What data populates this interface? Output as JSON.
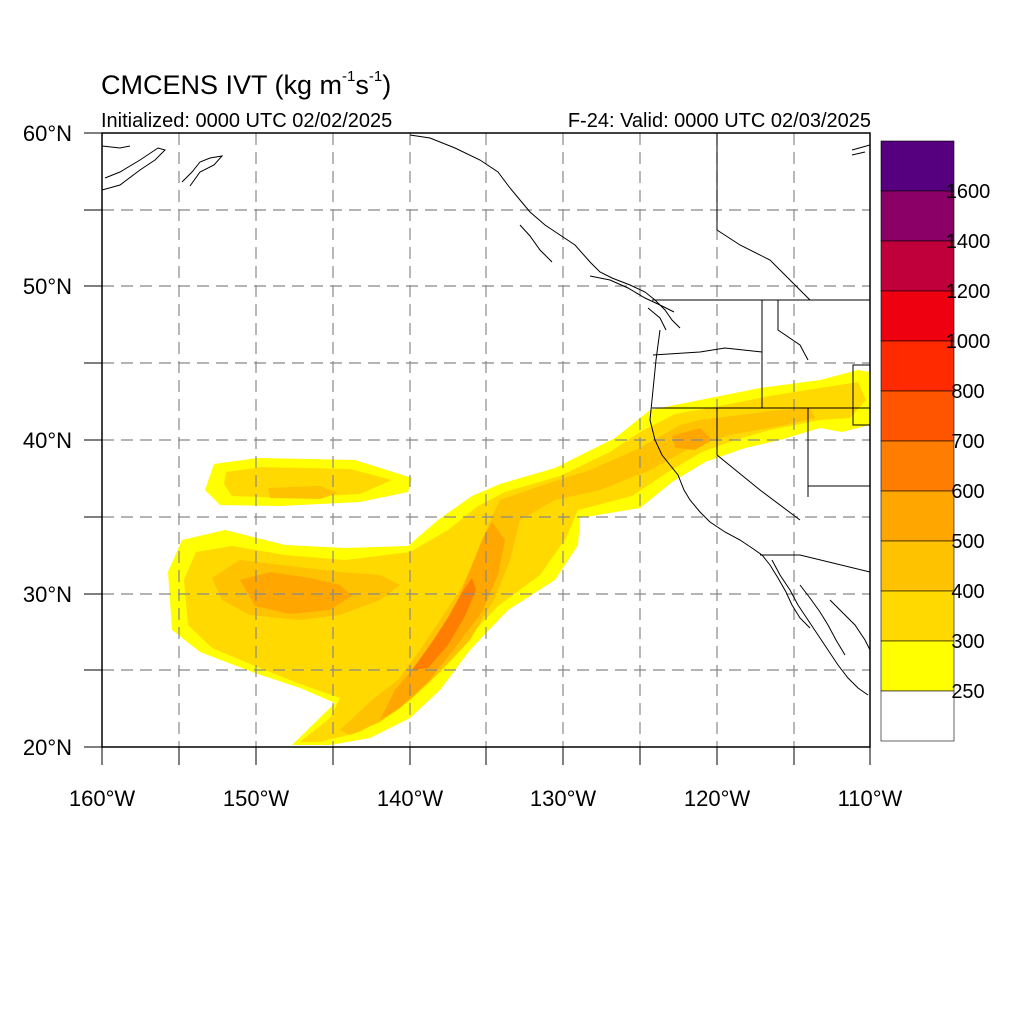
{
  "header": {
    "title_main": "CMCENS IVT (kg m",
    "title_exp1": "-1",
    "title_mid": "s",
    "title_exp2": "-1",
    "title_end": ")",
    "initialized": "Initialized: 0000 UTC 02/02/2025",
    "valid": "F-24: Valid: 0000 UTC 02/03/2025"
  },
  "map": {
    "lon_range": [
      -160,
      -110
    ],
    "lat_range": [
      20,
      60
    ],
    "lat_labels": [
      "60°N",
      "50°N",
      "40°N",
      "30°N",
      "20°N"
    ],
    "lon_labels": [
      "160°W",
      "150°W",
      "140°W",
      "130°W",
      "120°W",
      "110°W"
    ]
  },
  "colorbar": {
    "labels": [
      "1600",
      "1400",
      "1200",
      "1000",
      "800",
      "700",
      "600",
      "500",
      "400",
      "300",
      "250"
    ],
    "colors": [
      "#56007f",
      "#8b0066",
      "#c0003a",
      "#ee0010",
      "#ff2a00",
      "#ff5500",
      "#ff7d00",
      "#ffa700",
      "#ffc200",
      "#ffd900",
      "#ffff00",
      "#ffffff"
    ]
  },
  "ivt_colors": {
    "c250": "#ffff00",
    "c300": "#ffd900",
    "c400": "#ffc200",
    "c500": "#ffa700",
    "c600": "#ff7d00"
  }
}
